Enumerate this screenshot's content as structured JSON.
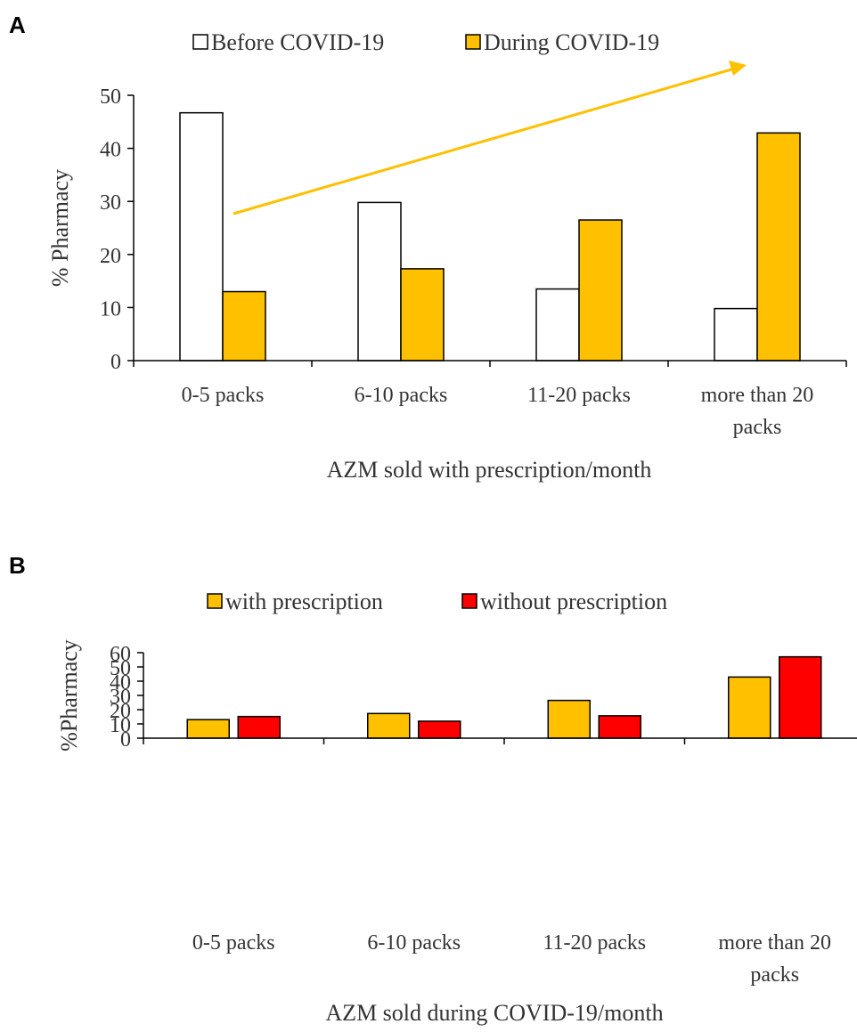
{
  "chart_data": [
    {
      "type": "bar",
      "panel": "A",
      "categories": [
        "0-5 packs",
        "6-10 packs",
        "11-20 packs",
        "more than 20 packs"
      ],
      "series": [
        {
          "name": "Before COVID-19",
          "values": [
            46.7,
            29.8,
            13.5,
            9.8
          ],
          "color": "#ffffff"
        },
        {
          "name": "During COVID-19",
          "values": [
            13.0,
            17.3,
            26.5,
            42.9
          ],
          "color": "#ffc000"
        }
      ],
      "xlabel": "AZM sold with prescription/month",
      "ylabel": "% Pharmacy",
      "ylim": [
        0,
        50
      ],
      "yticks": [
        "0",
        "10",
        "20",
        "30",
        "40",
        "50"
      ],
      "grid": false,
      "legend": "top",
      "annotation": {
        "type": "trend-arrow",
        "color": "#ffc000"
      }
    },
    {
      "type": "bar",
      "panel": "B",
      "categories": [
        "0-5 packs",
        "6-10 packs",
        "11-20 packs",
        "more than 20 packs"
      ],
      "series": [
        {
          "name": "with prescription",
          "values": [
            13.0,
            17.3,
            26.5,
            42.9
          ],
          "color": "#ffc000"
        },
        {
          "name": "without prescription",
          "values": [
            15.2,
            11.9,
            15.7,
            57.1
          ],
          "color": "#ff0000"
        }
      ],
      "xlabel": "AZM sold during COVID-19/month",
      "ylabel": "%Pharmacy",
      "ylim": [
        0,
        60
      ],
      "yticks": [
        "0",
        "10",
        "20",
        "30",
        "40",
        "50",
        "60"
      ],
      "grid": false,
      "legend": "top"
    }
  ]
}
